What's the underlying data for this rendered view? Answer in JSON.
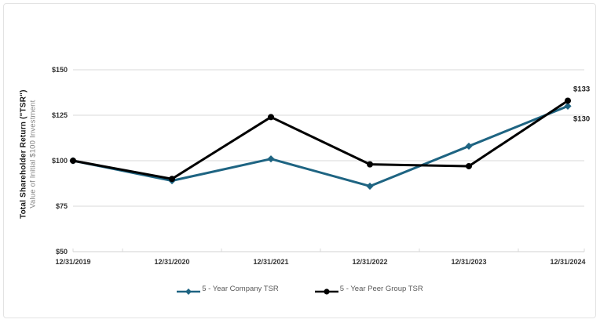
{
  "y_axis_title": {
    "line1": "Total Shareholder Return (\"TSR\")",
    "line2": "Value of Initial $100 Investment"
  },
  "chart_data": {
    "type": "line",
    "title": "",
    "categories": [
      "12/31/2019",
      "12/31/2020",
      "12/31/2021",
      "12/31/2022",
      "12/31/2023",
      "12/31/2024"
    ],
    "series": [
      {
        "name": "5 - Year Company TSR",
        "color": "#1E6482",
        "marker": "diamond",
        "values": [
          100,
          89,
          101,
          86,
          108,
          130
        ],
        "end_label": "$130"
      },
      {
        "name": "5 - Year Peer Group TSR",
        "color": "#000000",
        "marker": "circle",
        "values": [
          100,
          90,
          124,
          98,
          97,
          133
        ],
        "end_label": "$133"
      }
    ],
    "xlabel": "",
    "ylabel": "Total Shareholder Return (\"TSR\") / Value of Initial $100 Investment",
    "ylim": [
      50,
      150
    ],
    "ytick_step": 25,
    "yticks": [
      "$50",
      "$75",
      "$100",
      "$125",
      "$150"
    ],
    "grid": "horizontal-only",
    "legend_position": "bottom",
    "colors": {
      "gridline": "#D9D9D9",
      "tick_label": "#333333",
      "data_label": "#1A1A1A",
      "legend_text": "#595959"
    }
  }
}
